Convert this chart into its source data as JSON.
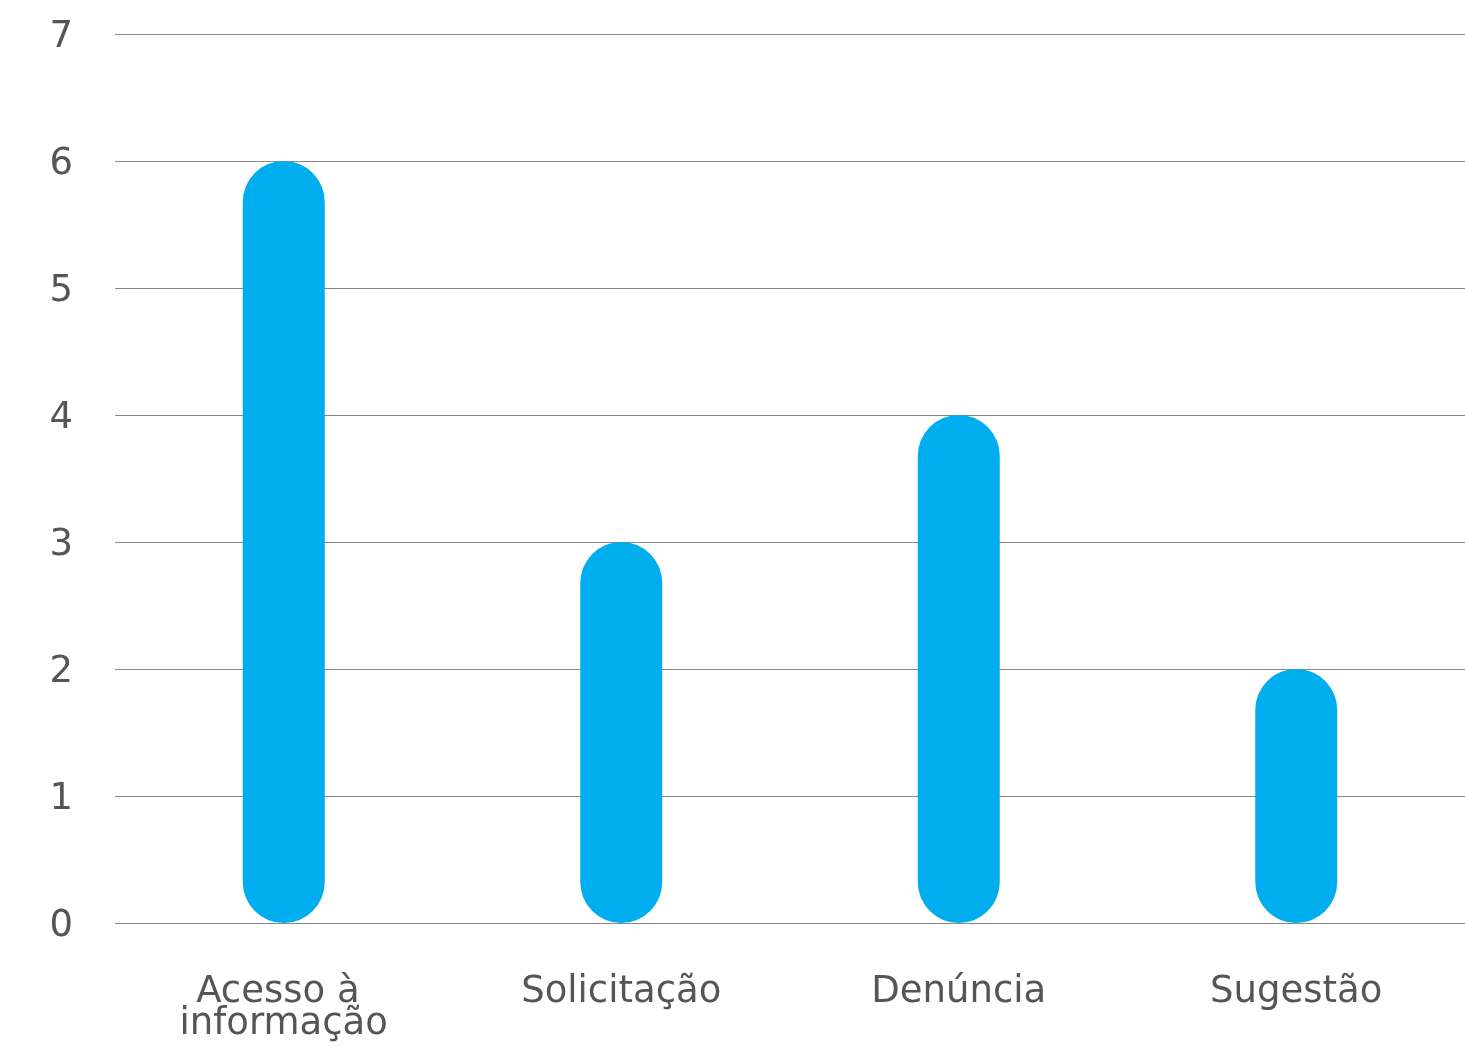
{
  "chart_data": {
    "type": "bar",
    "categories": [
      "Acesso à informação",
      "Solicitação",
      "Denúncia",
      "Sugestão"
    ],
    "values": [
      6,
      3,
      4,
      2
    ],
    "color": "#00aeef",
    "ylim": [
      0,
      7
    ],
    "yticks": [
      0,
      1,
      2,
      3,
      4,
      5,
      6,
      7
    ],
    "grid": true
  }
}
